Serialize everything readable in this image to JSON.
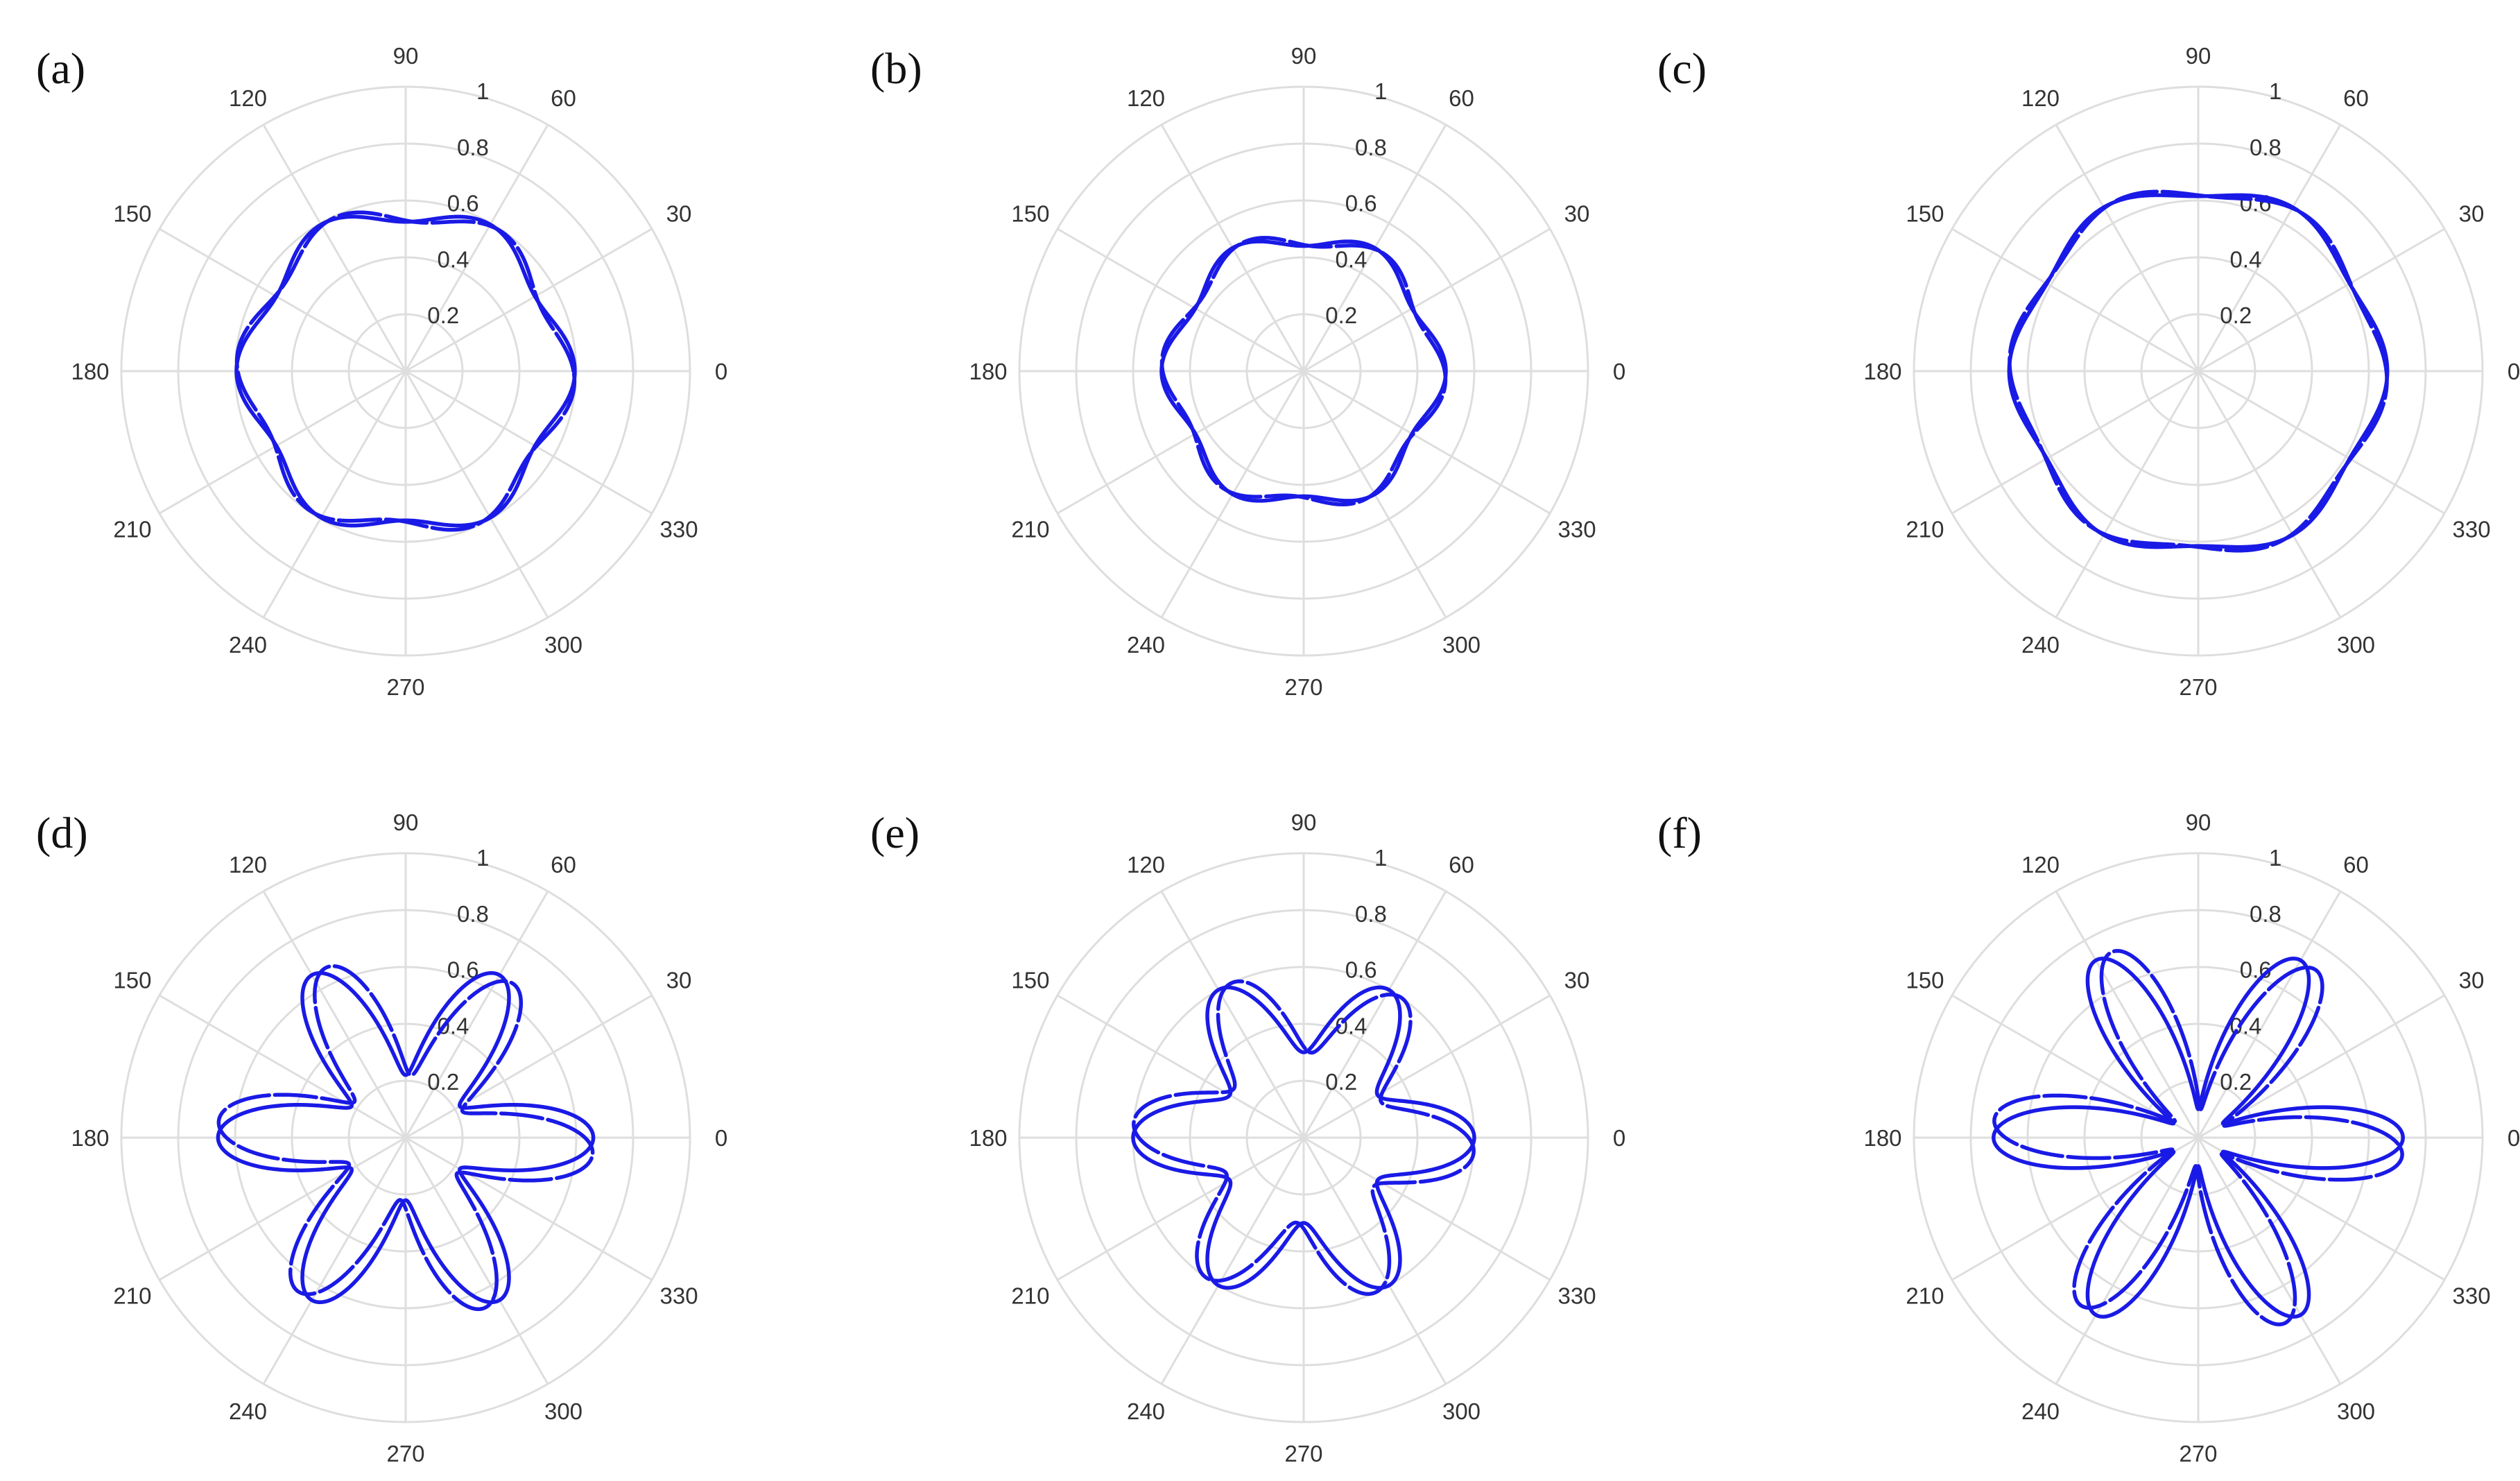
{
  "colors": {
    "grid": "#dedede",
    "curve": "#1a1ae6",
    "text": "#333333"
  },
  "chart_data": [
    {
      "type": "polar",
      "panel_label": "(a)",
      "rlim": [
        0,
        1
      ],
      "r_ticks": [
        "0.2",
        "0.4",
        "0.6",
        "0.8",
        "1"
      ],
      "theta_ticks": [
        "0",
        "30",
        "60",
        "90",
        "120",
        "150",
        "180",
        "210",
        "240",
        "270",
        "300",
        "330"
      ],
      "grid": true,
      "series": [
        {
          "shape": "rose",
          "lobes": 6,
          "r_mean": 0.56,
          "amplitude": 0.035,
          "phase_deg": 0
        },
        {
          "shape": "rose",
          "lobes": 6,
          "r_mean": 0.56,
          "amplitude": 0.035,
          "phase_deg": 30
        }
      ]
    },
    {
      "type": "polar",
      "panel_label": "(b)",
      "rlim": [
        0,
        1
      ],
      "r_ticks": [
        "0.2",
        "0.4",
        "0.6",
        "0.8",
        "1"
      ],
      "theta_ticks": [
        "0",
        "30",
        "60",
        "90",
        "120",
        "150",
        "180",
        "210",
        "240",
        "270",
        "300",
        "330"
      ],
      "grid": true,
      "series": [
        {
          "shape": "rose",
          "lobes": 6,
          "r_mean": 0.47,
          "amplitude": 0.03,
          "phase_deg": 0
        },
        {
          "shape": "rose",
          "lobes": 6,
          "r_mean": 0.47,
          "amplitude": 0.03,
          "phase_deg": 30
        }
      ]
    },
    {
      "type": "polar",
      "panel_label": "(c)",
      "rlim": [
        0,
        1
      ],
      "r_ticks": [
        "0.2",
        "0.4",
        "0.6",
        "0.8",
        "1"
      ],
      "theta_ticks": [
        "0",
        "30",
        "60",
        "90",
        "120",
        "150",
        "180",
        "210",
        "240",
        "270",
        "300",
        "330"
      ],
      "grid": true,
      "series": [
        {
          "shape": "rose",
          "lobes": 6,
          "r_mean": 0.64,
          "amplitude": 0.025,
          "phase_deg": 0
        },
        {
          "shape": "rose",
          "lobes": 6,
          "r_mean": 0.64,
          "amplitude": 0.025,
          "phase_deg": 30
        }
      ]
    },
    {
      "type": "polar",
      "panel_label": "(d)",
      "rlim": [
        0,
        1
      ],
      "r_ticks": [
        "0.2",
        "0.4",
        "0.6",
        "0.8",
        "1"
      ],
      "theta_ticks": [
        "0",
        "30",
        "60",
        "90",
        "120",
        "150",
        "180",
        "210",
        "240",
        "270",
        "300",
        "330"
      ],
      "grid": true,
      "series": [
        {
          "shape": "rose",
          "lobes": 6,
          "r_mean": 0.44,
          "amplitude": 0.22,
          "phase_deg": 0
        },
        {
          "shape": "rose",
          "lobes": 6,
          "r_mean": 0.44,
          "amplitude": 0.22,
          "phase_deg": 30
        }
      ]
    },
    {
      "type": "polar",
      "panel_label": "(e)",
      "rlim": [
        0,
        1
      ],
      "r_ticks": [
        "0.2",
        "0.4",
        "0.6",
        "0.8",
        "1"
      ],
      "theta_ticks": [
        "0",
        "30",
        "60",
        "90",
        "120",
        "150",
        "180",
        "210",
        "240",
        "270",
        "300",
        "330"
      ],
      "grid": true,
      "series": [
        {
          "shape": "rose",
          "lobes": 6,
          "r_mean": 0.45,
          "amplitude": 0.15,
          "phase_deg": 0
        },
        {
          "shape": "rose",
          "lobes": 6,
          "r_mean": 0.45,
          "amplitude": 0.15,
          "phase_deg": 30
        }
      ]
    },
    {
      "type": "polar",
      "panel_label": "(f)",
      "rlim": [
        0,
        1
      ],
      "r_ticks": [
        "0.2",
        "0.4",
        "0.6",
        "0.8",
        "1"
      ],
      "theta_ticks": [
        "0",
        "30",
        "60",
        "90",
        "120",
        "150",
        "180",
        "210",
        "240",
        "270",
        "300",
        "330"
      ],
      "grid": true,
      "series": [
        {
          "shape": "rose",
          "lobes": 6,
          "r_mean": 0.41,
          "amplitude": 0.31,
          "phase_deg": 0
        },
        {
          "shape": "rose",
          "lobes": 6,
          "r_mean": 0.41,
          "amplitude": 0.31,
          "phase_deg": 30
        }
      ]
    }
  ]
}
